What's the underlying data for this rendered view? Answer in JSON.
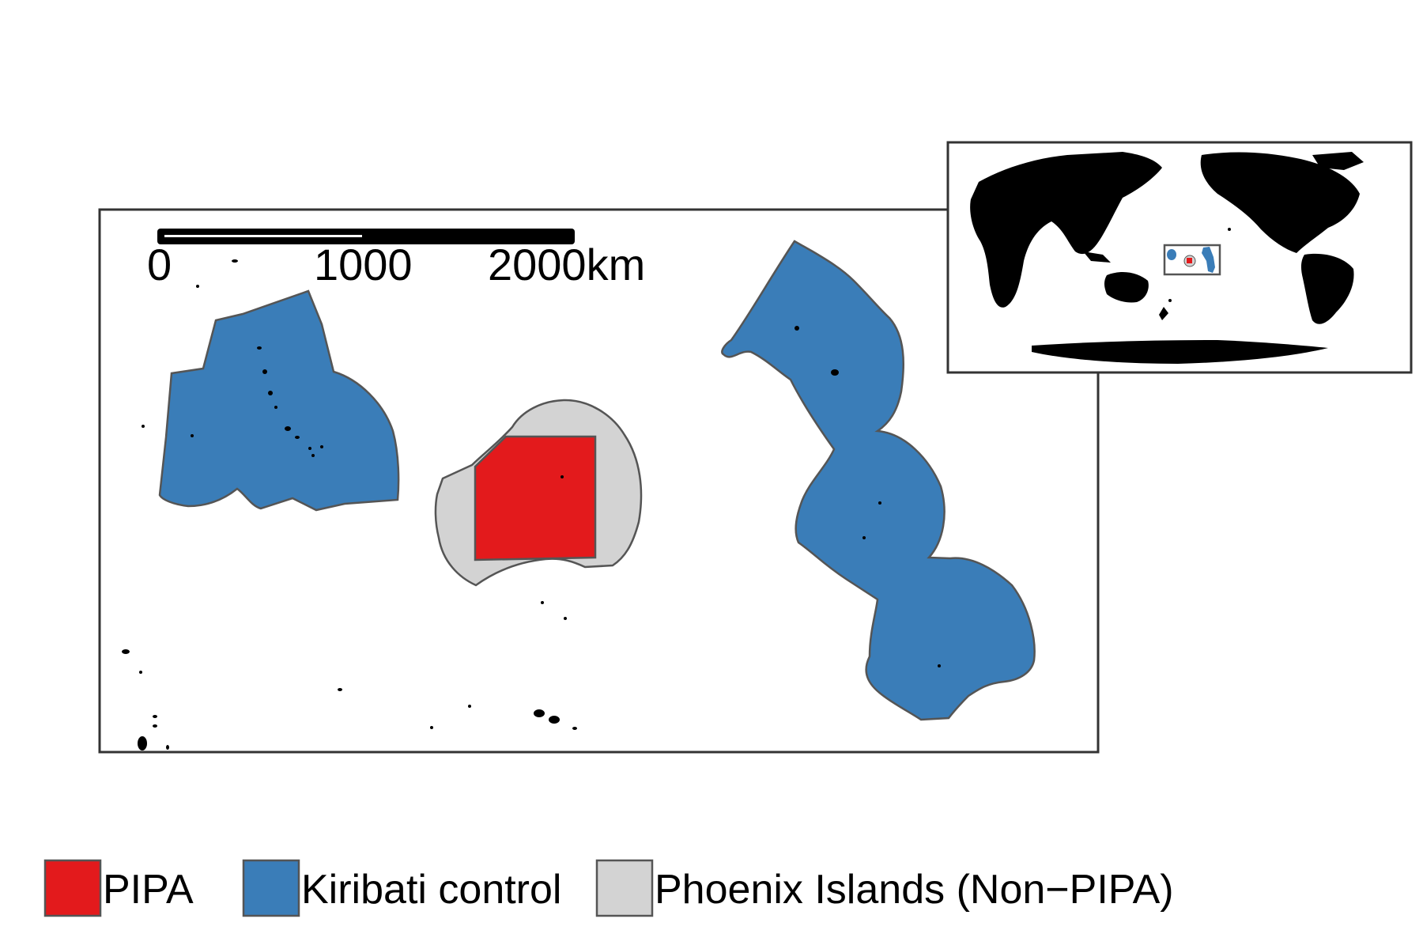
{
  "colors": {
    "pipa": "#e31a1c",
    "kiribati_control": "#3a7db8",
    "phoenix_non_pipa": "#d3d3d3",
    "land": "#000000",
    "frame": "#333333"
  },
  "scale_bar": {
    "labels": [
      "0",
      "1000",
      "2000km"
    ]
  },
  "legend": [
    {
      "key": "pipa",
      "label": "PIPA"
    },
    {
      "key": "kiribati_control",
      "label": "Kiribati control"
    },
    {
      "key": "phoenix_non_pipa",
      "label": "Phoenix Islands (Non−PIPA)"
    }
  ]
}
